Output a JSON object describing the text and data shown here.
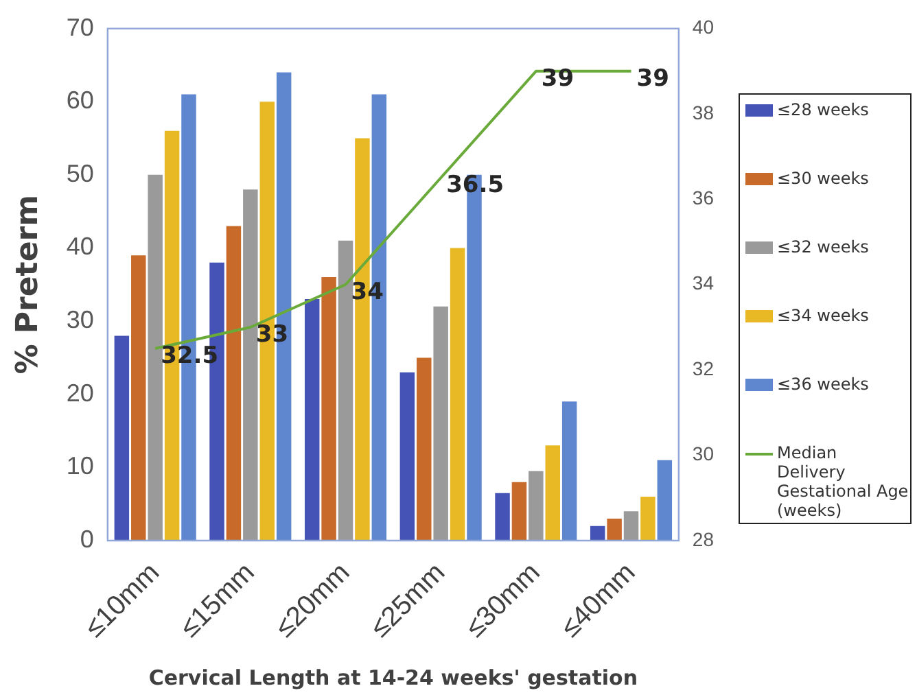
{
  "chart_data": {
    "type": "bar",
    "xlabel": "Cervical Length at 14-24 weeks' gestation",
    "ylabel": "% Preterm",
    "categories": [
      "≤10mm",
      "≤15mm",
      "≤20mm",
      "≤25mm",
      "≤30mm",
      "≤40mm"
    ],
    "series": [
      {
        "name": "≤28 weeks",
        "color": "#4453b5",
        "values": [
          28,
          38,
          33,
          23,
          6.5,
          2
        ]
      },
      {
        "name": "≤30 weeks",
        "color": "#c86a2a",
        "values": [
          39,
          43,
          36,
          25,
          8,
          3
        ]
      },
      {
        "name": "≤32 weeks",
        "color": "#9a9a9a",
        "values": [
          50,
          48,
          41,
          32,
          9.5,
          4
        ]
      },
      {
        "name": "≤34 weeks",
        "color": "#e8b825",
        "values": [
          56,
          60,
          55,
          40,
          13,
          6
        ]
      },
      {
        "name": "≤36 weeks",
        "color": "#5f87d0",
        "values": [
          61,
          64,
          61,
          50,
          19,
          11
        ]
      },
      {
        "name": "Median Delivery Gestational Age (weeks)",
        "type": "line",
        "axis": "y2",
        "color": "#6aaa3a",
        "values": [
          32.5,
          33,
          34,
          36.5,
          39,
          39
        ],
        "value_labels": [
          "32.5",
          "33",
          "34",
          "36.5",
          "39",
          "39"
        ]
      }
    ],
    "ylim": [
      0,
      70
    ],
    "yticks": [
      0,
      10,
      20,
      30,
      40,
      50,
      60,
      70
    ],
    "y2lim": [
      28,
      40
    ],
    "y2ticks": [
      28,
      30,
      32,
      34,
      36,
      38,
      40
    ],
    "grid": false,
    "legend": "right",
    "marker": "none",
    "line_style": "solid"
  }
}
